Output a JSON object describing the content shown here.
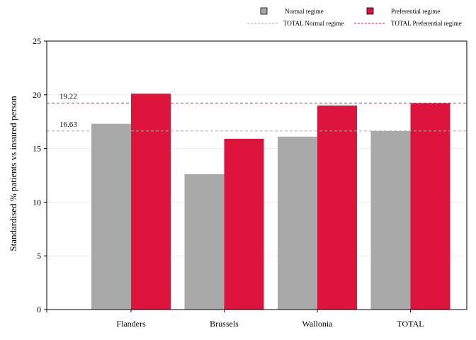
{
  "chart_data": {
    "type": "bar",
    "categories": [
      "Flanders",
      "Brussels",
      "Wallonia",
      "TOTAL"
    ],
    "series": [
      {
        "name": "Normal regime",
        "color": "#a9a9a9",
        "values": [
          17.3,
          12.6,
          16.1,
          16.63
        ]
      },
      {
        "name": "Preferential regime",
        "color": "#dc143c",
        "values": [
          20.1,
          15.9,
          19.0,
          19.22
        ]
      }
    ],
    "reference_lines": [
      {
        "name": "TOTAL Normal regime",
        "value": 16.63,
        "label": "16.63",
        "color": "#a9a9a9",
        "style": "dashed"
      },
      {
        "name": "TOTAL Preferential regime",
        "value": 19.22,
        "label": "19.22",
        "color": "#dc143c",
        "style": "dashed"
      }
    ],
    "ylabel": "Standardised % patients vs insured person",
    "ylim": [
      0,
      25
    ],
    "yticks": [
      "0",
      "5",
      "10",
      "15",
      "20",
      "25"
    ],
    "grid": true,
    "legend_position": "top"
  }
}
